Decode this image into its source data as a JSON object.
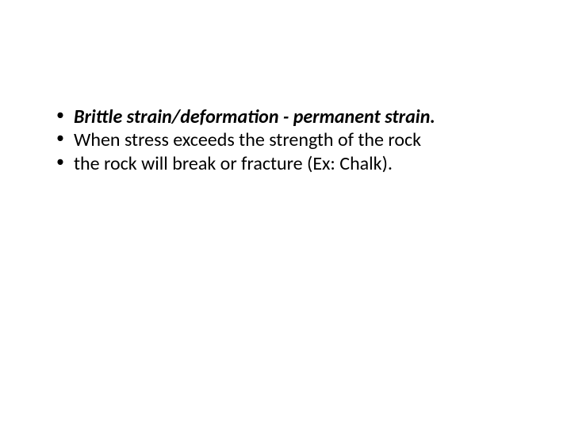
{
  "slide": {
    "bullets": [
      {
        "text": "Brittle strain/deformation - permanent strain.",
        "style": "bold-italic"
      },
      {
        "text": "When stress exceeds the strength of the rock",
        "style": "normal"
      },
      {
        "text": "the rock will break or fracture (Ex: Chalk).",
        "style": "normal"
      }
    ],
    "background_color": "#ffffff",
    "text_color": "#000000",
    "font_family": "Calibri",
    "font_size": 24
  }
}
